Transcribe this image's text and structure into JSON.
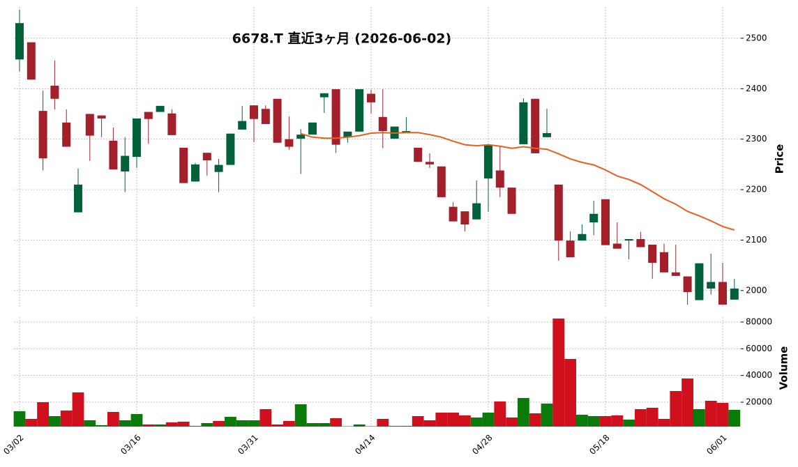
{
  "chart_data": {
    "type": "candlestick",
    "title": "6678.T  直近3ヶ月  (2026-06-02)",
    "categories": [
      "03/02",
      null,
      null,
      null,
      null,
      null,
      null,
      null,
      null,
      null,
      "03/16",
      null,
      null,
      null,
      null,
      null,
      null,
      null,
      null,
      null,
      "03/31",
      null,
      null,
      null,
      null,
      null,
      null,
      null,
      null,
      null,
      "04/14",
      null,
      null,
      null,
      null,
      null,
      null,
      null,
      null,
      null,
      "04/28",
      null,
      null,
      null,
      null,
      null,
      null,
      null,
      null,
      null,
      "05/18",
      null,
      null,
      null,
      null,
      null,
      null,
      null,
      null,
      null,
      "06/01",
      null
    ],
    "open": [
      2458,
      2492,
      2356,
      2406,
      2333,
      2155,
      2350,
      2347,
      2297,
      2236,
      2265,
      2354,
      2354,
      2351,
      2283,
      2216,
      2273,
      2235,
      2249,
      2319,
      2367,
      2360,
      2380,
      2300,
      2301,
      2309,
      2383,
      2399,
      2304,
      2315,
      2390,
      2344,
      2301,
      2312,
      2283,
      2255,
      2246,
      2166,
      2157,
      2141,
      2222,
      2238,
      2204,
      2290,
      2380,
      2304,
      2210,
      2099,
      2099,
      2135,
      2181,
      2093,
      2099,
      2102,
      2091,
      2076,
      2036,
      2028,
      1981,
      2004,
      2017,
      1982
    ],
    "high": [
      2557,
      2492,
      2396,
      2456,
      2359,
      2242,
      2350,
      2347,
      2323,
      2304,
      2341,
      2354,
      2366,
      2359,
      2283,
      2253,
      2273,
      2261,
      2311,
      2366,
      2367,
      2367,
      2380,
      2345,
      2320,
      2333,
      2391,
      2399,
      2315,
      2399,
      2398,
      2399,
      2325,
      2344,
      2283,
      2272,
      2246,
      2175,
      2157,
      2218,
      2289,
      2286,
      2204,
      2381,
      2380,
      2360,
      2210,
      2117,
      2131,
      2178,
      2181,
      2135,
      2102,
      2116,
      2091,
      2093,
      2091,
      2028,
      2054,
      2073,
      2055,
      2023
    ],
    "low": [
      2434,
      2418,
      2238,
      2359,
      2285,
      2155,
      2257,
      2304,
      2240,
      2195,
      2243,
      2291,
      2354,
      2308,
      2213,
      2216,
      2228,
      2195,
      2249,
      2319,
      2294,
      2330,
      2293,
      2279,
      2231,
      2309,
      2352,
      2273,
      2293,
      2315,
      2351,
      2282,
      2301,
      2312,
      2255,
      2243,
      2185,
      2137,
      2117,
      2141,
      2156,
      2185,
      2152,
      2290,
      2272,
      2304,
      2059,
      2066,
      2099,
      2110,
      2090,
      2083,
      2062,
      2086,
      2023,
      2036,
      2029,
      1972,
      1981,
      1992,
      1972,
      1982
    ],
    "close": [
      2530,
      2418,
      2262,
      2380,
      2285,
      2210,
      2307,
      2341,
      2240,
      2267,
      2341,
      2340,
      2366,
      2308,
      2213,
      2250,
      2258,
      2249,
      2311,
      2336,
      2340,
      2330,
      2293,
      2285,
      2309,
      2333,
      2391,
      2289,
      2315,
      2399,
      2373,
      2316,
      2325,
      2316,
      2255,
      2250,
      2185,
      2137,
      2131,
      2173,
      2289,
      2204,
      2152,
      2373,
      2272,
      2312,
      2099,
      2066,
      2112,
      2152,
      2090,
      2083,
      2102,
      2086,
      2055,
      2036,
      2029,
      1997,
      2054,
      2017,
      1972,
      2004
    ],
    "up_color": "#00613a",
    "down_color": "#a31f2a",
    "ylim": [
      1968,
      2562
    ],
    "yticks": [
      2000,
      2100,
      2200,
      2300,
      2400,
      2500
    ],
    "ylabel": "Price",
    "grid": true,
    "ma": {
      "color": "#e8601c",
      "values": [
        null,
        null,
        null,
        null,
        null,
        null,
        null,
        null,
        null,
        null,
        null,
        null,
        null,
        null,
        null,
        null,
        null,
        null,
        null,
        null,
        null,
        null,
        null,
        null,
        2311,
        2304,
        2302,
        2302,
        2304,
        2307,
        2312,
        2313,
        2312,
        2313,
        2313,
        2309,
        2304,
        2296,
        2289,
        2287,
        2289,
        2286,
        2282,
        2285,
        2282,
        2280,
        2271,
        2261,
        2254,
        2249,
        2239,
        2227,
        2220,
        2210,
        2196,
        2182,
        2171,
        2157,
        2148,
        2138,
        2127,
        2120
      ]
    },
    "volume": {
      "values": [
        13220,
        7480,
        20000,
        9570,
        13740,
        27300,
        6440,
        2790,
        12700,
        6440,
        11130,
        3310,
        3310,
        4870,
        5400,
        2270,
        4350,
        5920,
        9050,
        6440,
        6440,
        14780,
        3310,
        5920,
        18430,
        4350,
        4350,
        8000,
        2000,
        3310,
        2000,
        7480,
        2270,
        2270,
        9570,
        6440,
        12180,
        12180,
        10090,
        8520,
        12180,
        20520,
        8520,
        23130,
        11650,
        18960,
        82590,
        52340,
        10610,
        9570,
        9570,
        10090,
        6960,
        14780,
        15830,
        7480,
        28350,
        37730,
        14780,
        21040,
        19480,
        14260
      ],
      "ylim": [
        1740,
        83650
      ],
      "yticks": [
        20000,
        40000,
        60000,
        80000
      ],
      "ylabel": "Volume",
      "up_color": "#0a7a0a",
      "down_color": "#d0101c"
    }
  }
}
